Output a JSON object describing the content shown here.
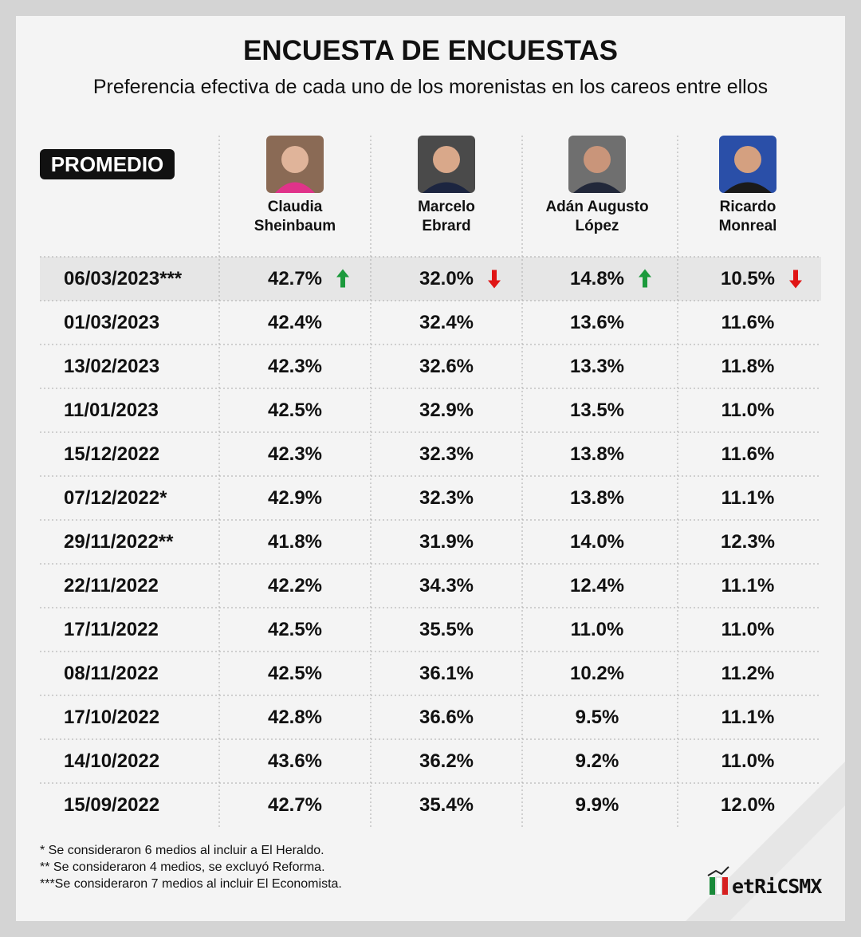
{
  "header": {
    "title": "ENCUESTA DE ENCUESTAS",
    "subtitle": "Preferencia efectiva de cada uno de los morenistas en los careos entre ellos"
  },
  "table": {
    "badge": "PROMEDIO",
    "columns": [
      [
        "Claudia",
        "Sheinbaum"
      ],
      [
        "Marcelo",
        "Ebrard"
      ],
      [
        "Adán Augusto",
        "López"
      ],
      [
        "Ricardo",
        "Monreal"
      ]
    ],
    "trends": [
      "up",
      "down",
      "up",
      "down"
    ],
    "rows": [
      [
        "06/03/2023***",
        "42.7%",
        "32.0%",
        "14.8%",
        "10.5%"
      ],
      [
        "01/03/2023",
        "42.4%",
        "32.4%",
        "13.6%",
        "11.6%"
      ],
      [
        "13/02/2023",
        "42.3%",
        "32.6%",
        "13.3%",
        "11.8%"
      ],
      [
        "11/01/2023",
        "42.5%",
        "32.9%",
        "13.5%",
        "11.0%"
      ],
      [
        "15/12/2022",
        "42.3%",
        "32.3%",
        "13.8%",
        "11.6%"
      ],
      [
        "07/12/2022*",
        "42.9%",
        "32.3%",
        "13.8%",
        "11.1%"
      ],
      [
        "29/11/2022**",
        "41.8%",
        "31.9%",
        "14.0%",
        "12.3%"
      ],
      [
        "22/11/2022",
        "42.2%",
        "34.3%",
        "12.4%",
        "11.1%"
      ],
      [
        "17/11/2022",
        "42.5%",
        "35.5%",
        "11.0%",
        "11.0%"
      ],
      [
        "08/11/2022",
        "42.5%",
        "36.1%",
        "10.2%",
        "11.2%"
      ],
      [
        "17/10/2022",
        "42.8%",
        "36.6%",
        "9.5%",
        "11.1%"
      ],
      [
        "14/10/2022",
        "43.6%",
        "36.2%",
        "9.2%",
        "11.0%"
      ],
      [
        "15/09/2022",
        "42.7%",
        "35.4%",
        "9.9%",
        "12.0%"
      ]
    ]
  },
  "footnotes": [
    "* Se consideraron 6 medios al incluir a El Heraldo.",
    "** Se consideraron 4 medios, se excluyó Reforma.",
    "***Se consideraron 7 medios al incluir El Economista."
  ],
  "logo": "etRiCSMX"
}
